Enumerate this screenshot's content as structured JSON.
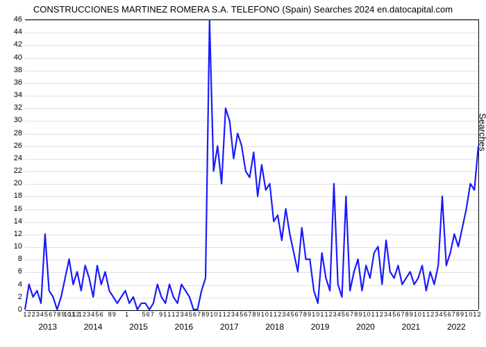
{
  "chart": {
    "type": "line",
    "title": "CONSTRUCCIONES MARTINEZ ROMERA S.A. TELEFONO (Spain) Searches 2024 en.datocapital.com",
    "title_fontsize": 13,
    "y_axis_title": "Searches",
    "background_color": "#ffffff",
    "grid_color": "#e0e0e0",
    "axis_color": "#000000",
    "line_color": "#1a1aff",
    "line_width": 2.2,
    "ylim": [
      0,
      46
    ],
    "ytick_step": 2,
    "yticks": [
      0,
      2,
      4,
      6,
      8,
      10,
      12,
      14,
      16,
      18,
      20,
      22,
      24,
      26,
      28,
      30,
      32,
      34,
      36,
      38,
      40,
      42,
      44,
      46
    ],
    "x_years": [
      "2013",
      "2014",
      "2015",
      "2016",
      "2017",
      "2018",
      "2019",
      "2020",
      "2021",
      "2022"
    ],
    "x_month_labels": [
      "1",
      "2",
      "2",
      "3",
      "4",
      "5",
      "6",
      "7",
      "8",
      "9",
      "10",
      "11",
      "12",
      "1",
      "2",
      "3",
      "4",
      "5",
      "6",
      " ",
      "8",
      "9",
      " ",
      " ",
      "1",
      " ",
      " ",
      " ",
      "5",
      "6",
      "7",
      " ",
      "9",
      "1",
      "1",
      "1",
      "2",
      "3",
      "4",
      "5",
      "6",
      "7",
      "8",
      "9",
      "1",
      "0",
      "1",
      "1",
      "2",
      "3",
      "4",
      "5",
      "6",
      "7",
      "8",
      "9",
      "1",
      "0",
      "1",
      "1",
      "2",
      "3",
      "4",
      "5",
      "6",
      "7",
      "8",
      "9",
      "1",
      "0",
      "1",
      "1",
      "2",
      "3",
      "4",
      "5",
      "6",
      "7",
      "8",
      "9",
      "1",
      "0",
      "1",
      "1",
      "2",
      "3",
      "4",
      "5",
      "6",
      "7",
      "8",
      "9",
      "1",
      "0",
      "1",
      "1",
      "2",
      "3",
      "4",
      "5",
      "6",
      "7",
      "8",
      "9",
      "1",
      "0",
      "1",
      "2"
    ],
    "data": [
      0,
      4,
      2,
      3,
      1,
      12,
      3,
      2,
      0,
      2,
      5,
      8,
      4,
      6,
      3,
      7,
      5,
      2,
      7,
      4,
      6,
      3,
      2,
      1,
      2,
      3,
      1,
      2,
      0,
      1,
      1,
      0,
      1,
      4,
      2,
      1,
      4,
      2,
      1,
      4,
      3,
      2,
      0,
      0,
      3,
      5,
      46,
      22,
      26,
      20,
      32,
      30,
      24,
      28,
      26,
      22,
      21,
      25,
      18,
      23,
      19,
      20,
      14,
      15,
      11,
      16,
      12,
      9,
      6,
      13,
      8,
      8,
      3,
      1,
      9,
      5,
      3,
      20,
      4,
      2,
      18,
      3,
      6,
      8,
      3,
      7,
      5,
      9,
      10,
      4,
      11,
      6,
      5,
      7,
      4,
      5,
      6,
      4,
      5,
      7,
      3,
      6,
      4,
      7,
      18,
      7,
      9,
      12,
      10,
      13,
      16,
      20,
      19,
      26
    ]
  }
}
